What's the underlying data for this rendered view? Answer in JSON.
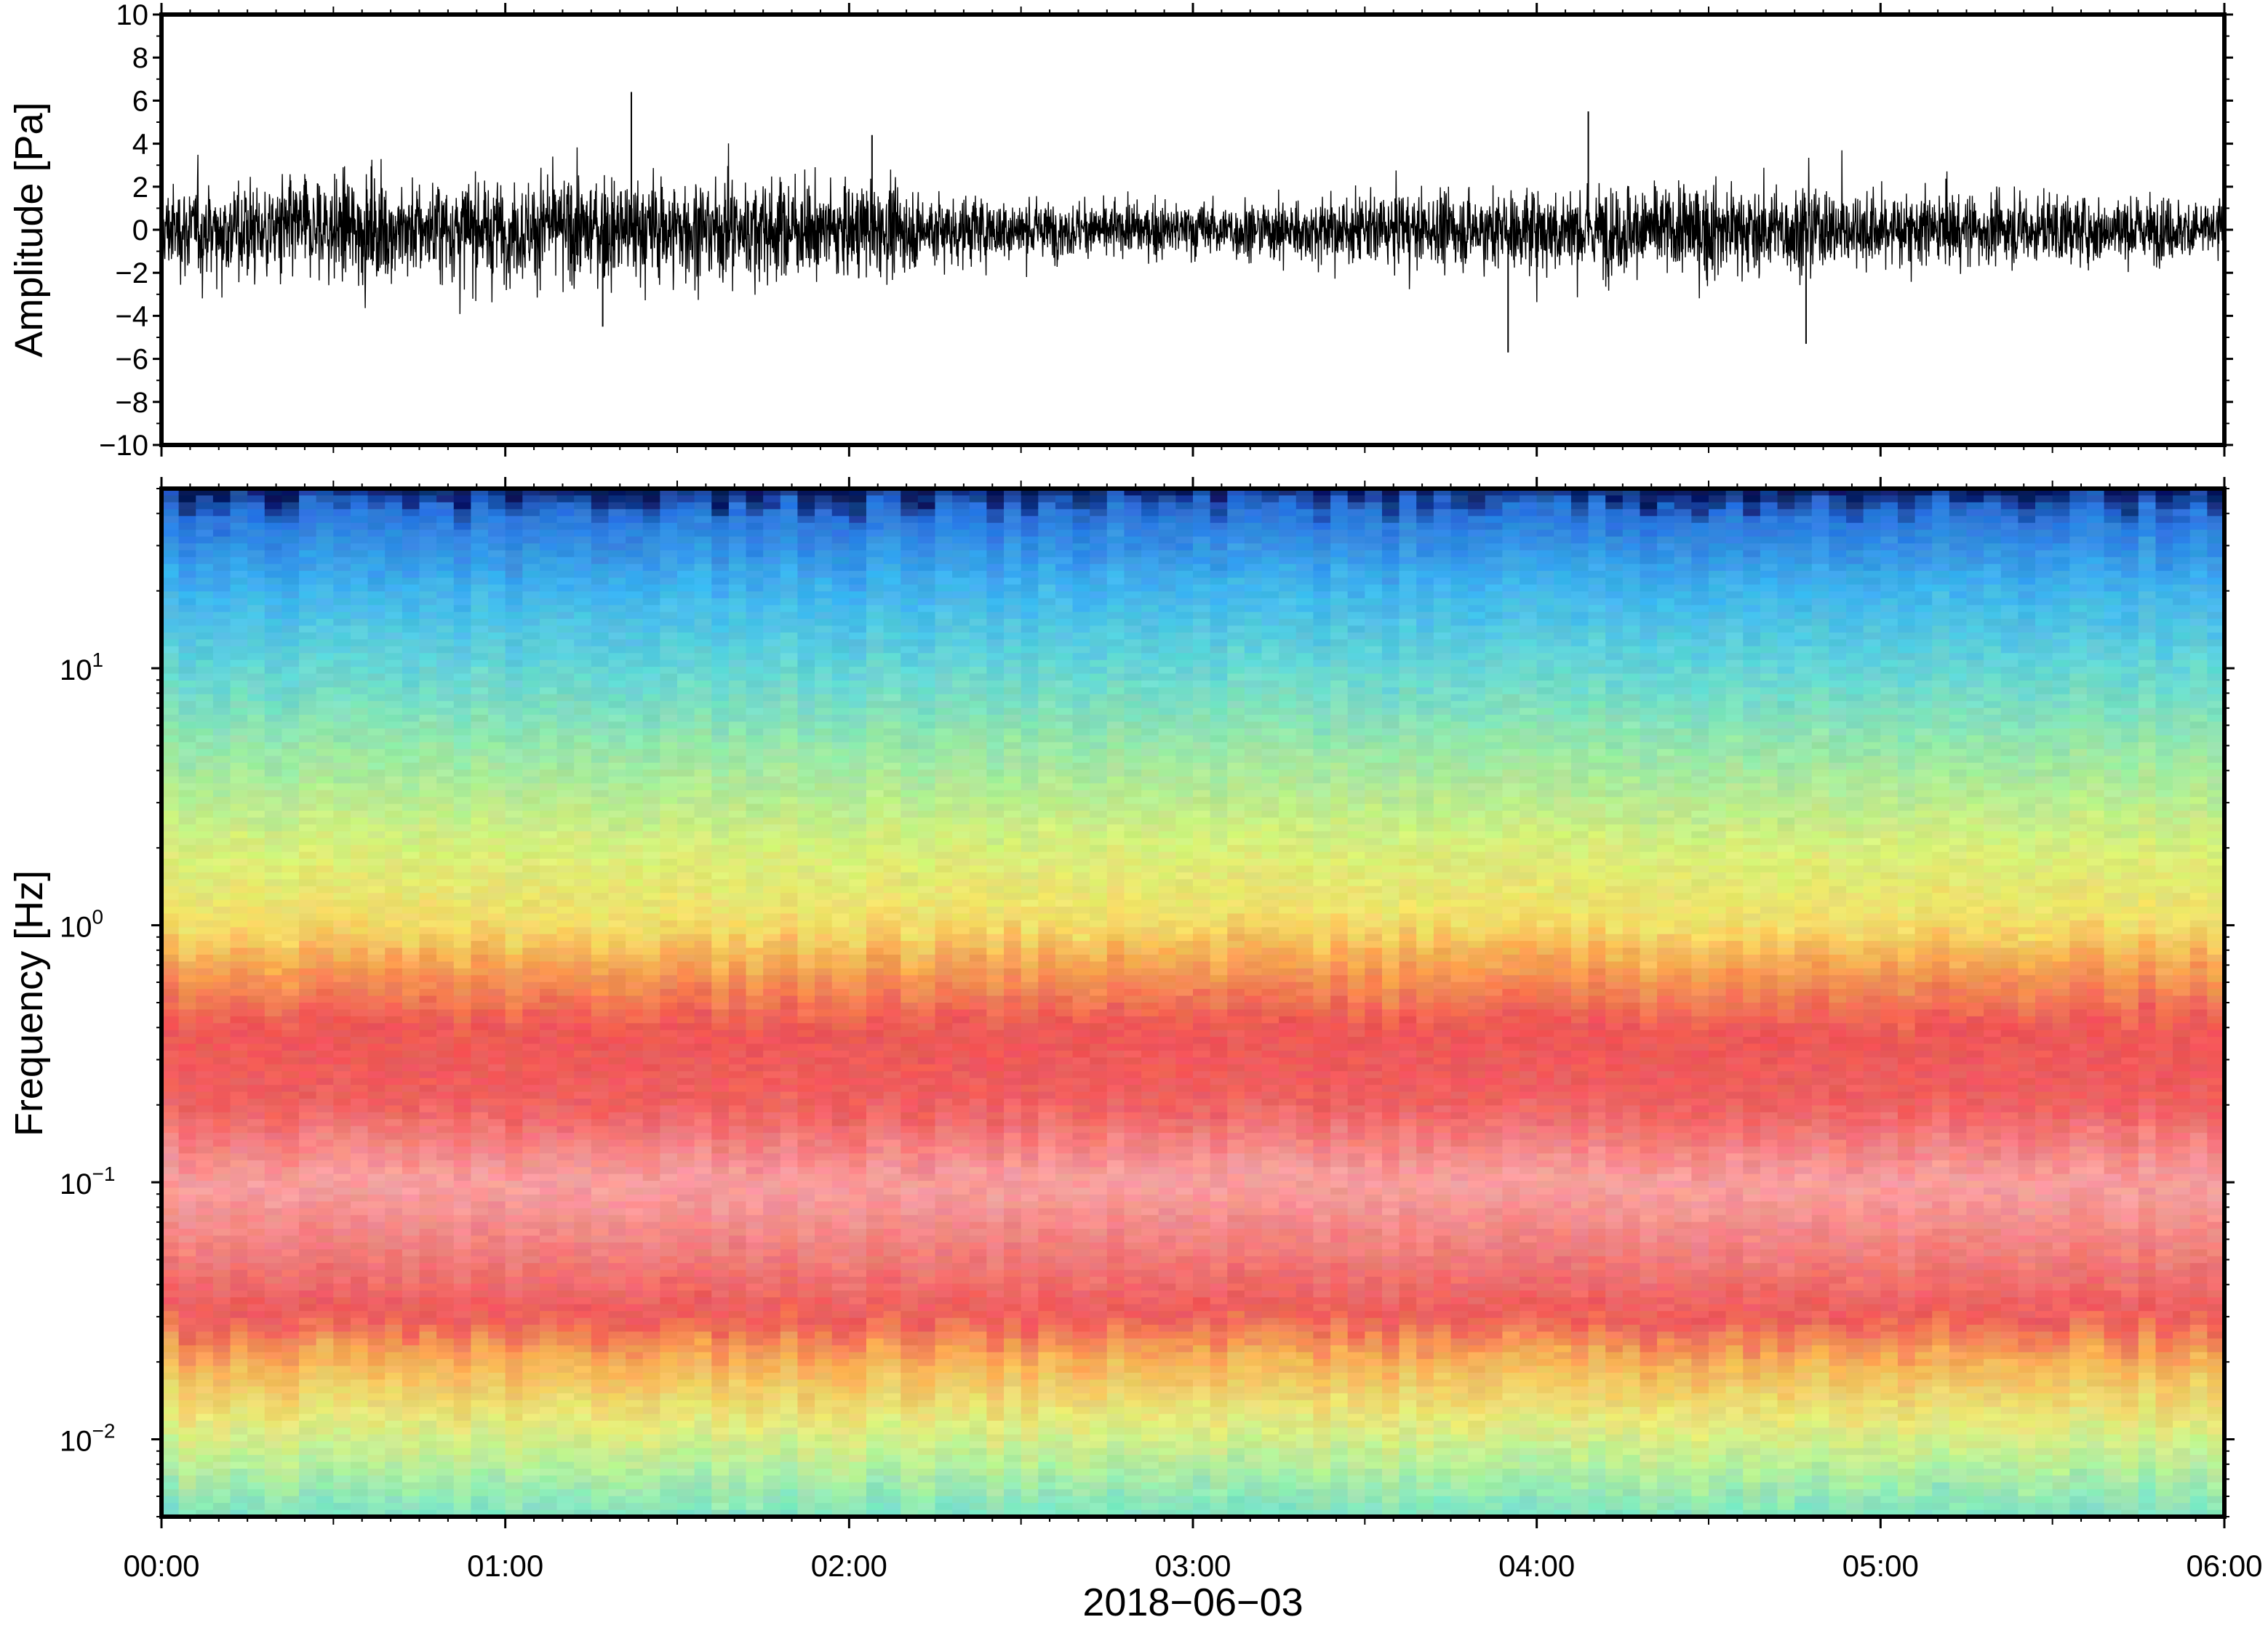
{
  "chart_data": [
    {
      "type": "line",
      "panel": "waveform",
      "ylabel": "Amplitude [Pa]",
      "ylim": [
        -10,
        10
      ],
      "yticks": [
        -10,
        -8,
        -6,
        -4,
        -2,
        0,
        2,
        4,
        6,
        8,
        10
      ],
      "ytick_labels": [
        "−10",
        "−8",
        "−6",
        "−4",
        "−2",
        "0",
        "2",
        "4",
        "6",
        "8",
        "10"
      ],
      "xlim": [
        "00:00",
        "06:00"
      ],
      "series": [
        {
          "color": "#000000",
          "envelope_hours": [
            0,
            0.25,
            0.5,
            0.75,
            1.0,
            1.25,
            1.5,
            1.75,
            2.0,
            2.25,
            2.5,
            2.75,
            3.0,
            3.25,
            3.5,
            3.75,
            4.0,
            4.25,
            4.5,
            4.75,
            5.0,
            5.25,
            5.5,
            5.75,
            6.0
          ],
          "envelope_amplitude_pa": [
            2.2,
            2.6,
            2.8,
            2.6,
            2.6,
            2.8,
            2.8,
            2.6,
            2.4,
            2.0,
            1.6,
            1.3,
            1.5,
            1.6,
            1.8,
            1.9,
            2.2,
            2.4,
            2.4,
            2.2,
            2.0,
            1.9,
            1.8,
            1.7,
            1.6
          ],
          "peaks": [
            {
              "time": "01:22",
              "value": 6.4
            },
            {
              "time": "01:17",
              "value": -4.5
            },
            {
              "time": "04:09",
              "value": 5.5
            },
            {
              "time": "03:55",
              "value": -5.7
            },
            {
              "time": "04:47",
              "value": -5.3
            },
            {
              "time": "02:04",
              "value": 4.4
            }
          ]
        }
      ]
    },
    {
      "type": "heatmap",
      "panel": "spectrogram",
      "ylabel": "Frequency [Hz]",
      "yscale": "log",
      "ylim": [
        0.005,
        50
      ],
      "yticks": [
        0.01,
        0.1,
        1,
        10
      ],
      "ytick_labels": [
        {
          "base": "10",
          "exp": "−2"
        },
        {
          "base": "10",
          "exp": "−1"
        },
        {
          "base": "10",
          "exp": "0"
        },
        {
          "base": "10",
          "exp": "1"
        }
      ],
      "xlim": [
        "00:00",
        "06:00"
      ],
      "xticks": [
        "00:00",
        "01:00",
        "02:00",
        "03:00",
        "04:00",
        "05:00",
        "06:00"
      ],
      "xlabel": "2018−06−03",
      "colormap": "jet-like",
      "profile_frequency_hz": [
        0.005,
        0.008,
        0.012,
        0.02,
        0.03,
        0.05,
        0.1,
        0.2,
        0.4,
        0.7,
        1.0,
        2.0,
        5.0,
        10.0,
        20.0,
        40.0,
        50.0
      ],
      "profile_color": [
        "#7de3c6",
        "#b8f09a",
        "#e8ea7a",
        "#f7b256",
        "#ee5a5a",
        "#f07a78",
        "#f7a1a1",
        "#ef6060",
        "#ee5656",
        "#f6a352",
        "#f4de68",
        "#d7f07a",
        "#96e7aa",
        "#64d6d6",
        "#3fb5ee",
        "#2a74dc",
        "#08165c"
      ]
    }
  ]
}
